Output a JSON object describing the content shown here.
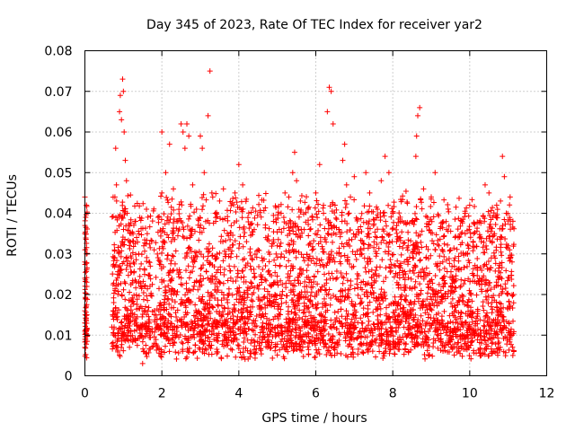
{
  "chart_data": {
    "type": "scatter",
    "title": "Day 345 of 2023, Rate Of TEC Index for receiver yar2",
    "xlabel": "GPS time / hours",
    "ylabel": "ROTI / TECUs",
    "xlim": [
      0,
      12
    ],
    "ylim": [
      0,
      0.08
    ],
    "x_ticks": [
      0,
      2,
      4,
      6,
      8,
      10,
      12
    ],
    "y_ticks": [
      0,
      0.01,
      0.02,
      0.03,
      0.04,
      0.05,
      0.06,
      0.07,
      0.08
    ],
    "x_tick_labels": [
      "0",
      "2",
      "4",
      "6",
      "8",
      "10",
      "12"
    ],
    "y_tick_labels": [
      "0",
      "0.01",
      "0.02",
      "0.03",
      "0.04",
      "0.05",
      "0.06",
      "0.07",
      "0.08"
    ],
    "grid": true,
    "marker": "plus",
    "series": [
      {
        "name": "ROTI",
        "color": "#ff0000",
        "points": [
          [
            0.0,
            0.007
          ],
          [
            0.0,
            0.011
          ],
          [
            0.0,
            0.013
          ],
          [
            0.0,
            0.016
          ],
          [
            0.0,
            0.024
          ],
          [
            0.0,
            0.028
          ],
          [
            0.0,
            0.035
          ],
          [
            0.0,
            0.044
          ],
          [
            0.02,
            0.039
          ],
          [
            0.02,
            0.009
          ],
          [
            0.04,
            0.042
          ],
          [
            0.04,
            0.03
          ],
          [
            0.7,
            0.012
          ],
          [
            0.72,
            0.015
          ],
          [
            0.75,
            0.018
          ],
          [
            0.77,
            0.031
          ],
          [
            0.78,
            0.044
          ],
          [
            0.8,
            0.056
          ],
          [
            0.82,
            0.047
          ],
          [
            0.85,
            0.025
          ],
          [
            0.9,
            0.065
          ],
          [
            0.92,
            0.069
          ],
          [
            0.95,
            0.063
          ],
          [
            0.98,
            0.073
          ],
          [
            1.0,
            0.07
          ],
          [
            1.02,
            0.06
          ],
          [
            1.05,
            0.053
          ],
          [
            1.08,
            0.048
          ],
          [
            1.1,
            0.04
          ],
          [
            1.2,
            0.035
          ],
          [
            1.3,
            0.038
          ],
          [
            1.4,
            0.03
          ],
          [
            1.5,
            0.003
          ],
          [
            1.55,
            0.026
          ],
          [
            1.6,
            0.041
          ],
          [
            1.7,
            0.027
          ],
          [
            1.8,
            0.031
          ],
          [
            1.9,
            0.039
          ],
          [
            2.0,
            0.045
          ],
          [
            2.0,
            0.06
          ],
          [
            2.1,
            0.05
          ],
          [
            2.2,
            0.057
          ],
          [
            2.3,
            0.046
          ],
          [
            2.4,
            0.038
          ],
          [
            2.5,
            0.062
          ],
          [
            2.55,
            0.06
          ],
          [
            2.6,
            0.056
          ],
          [
            2.65,
            0.062
          ],
          [
            2.7,
            0.059
          ],
          [
            2.8,
            0.047
          ],
          [
            2.9,
            0.041
          ],
          [
            3.0,
            0.059
          ],
          [
            3.05,
            0.056
          ],
          [
            3.1,
            0.05
          ],
          [
            3.2,
            0.064
          ],
          [
            3.25,
            0.075
          ],
          [
            3.3,
            0.045
          ],
          [
            3.4,
            0.038
          ],
          [
            3.5,
            0.043
          ],
          [
            3.6,
            0.046
          ],
          [
            3.7,
            0.035
          ],
          [
            3.8,
            0.03
          ],
          [
            3.9,
            0.045
          ],
          [
            4.0,
            0.052
          ],
          [
            4.1,
            0.047
          ],
          [
            4.2,
            0.033
          ],
          [
            4.3,
            0.027
          ],
          [
            4.4,
            0.036
          ],
          [
            4.5,
            0.031
          ],
          [
            4.6,
            0.029
          ],
          [
            4.7,
            0.034
          ],
          [
            4.8,
            0.025
          ],
          [
            4.9,
            0.038
          ],
          [
            5.0,
            0.032
          ],
          [
            5.1,
            0.04
          ],
          [
            5.2,
            0.045
          ],
          [
            5.3,
            0.044
          ],
          [
            5.4,
            0.05
          ],
          [
            5.45,
            0.055
          ],
          [
            5.5,
            0.048
          ],
          [
            5.6,
            0.043
          ],
          [
            5.7,
            0.036
          ],
          [
            5.8,
            0.041
          ],
          [
            5.9,
            0.039
          ],
          [
            6.0,
            0.045
          ],
          [
            6.1,
            0.052
          ],
          [
            6.2,
            0.04
          ],
          [
            6.3,
            0.065
          ],
          [
            6.35,
            0.071
          ],
          [
            6.4,
            0.07
          ],
          [
            6.45,
            0.062
          ],
          [
            6.5,
            0.042
          ],
          [
            6.6,
            0.036
          ],
          [
            6.7,
            0.053
          ],
          [
            6.75,
            0.057
          ],
          [
            6.8,
            0.047
          ],
          [
            6.9,
            0.044
          ],
          [
            7.0,
            0.049
          ],
          [
            7.1,
            0.036
          ],
          [
            7.2,
            0.03
          ],
          [
            7.3,
            0.05
          ],
          [
            7.4,
            0.045
          ],
          [
            7.5,
            0.037
          ],
          [
            7.6,
            0.041
          ],
          [
            7.7,
            0.048
          ],
          [
            7.8,
            0.054
          ],
          [
            7.9,
            0.05
          ],
          [
            8.0,
            0.04
          ],
          [
            8.1,
            0.033
          ],
          [
            8.2,
            0.034
          ],
          [
            8.3,
            0.028
          ],
          [
            8.4,
            0.032
          ],
          [
            8.5,
            0.038
          ],
          [
            8.6,
            0.054
          ],
          [
            8.62,
            0.059
          ],
          [
            8.65,
            0.064
          ],
          [
            8.7,
            0.066
          ],
          [
            8.8,
            0.046
          ],
          [
            8.9,
            0.039
          ],
          [
            9.0,
            0.044
          ],
          [
            9.1,
            0.05
          ],
          [
            9.2,
            0.032
          ],
          [
            9.3,
            0.028
          ],
          [
            9.4,
            0.036
          ],
          [
            9.5,
            0.031
          ],
          [
            9.6,
            0.027
          ],
          [
            9.7,
            0.034
          ],
          [
            9.8,
            0.038
          ],
          [
            9.9,
            0.03
          ],
          [
            10.0,
            0.042
          ],
          [
            10.1,
            0.035
          ],
          [
            10.2,
            0.026
          ],
          [
            10.3,
            0.033
          ],
          [
            10.4,
            0.047
          ],
          [
            10.5,
            0.045
          ],
          [
            10.6,
            0.039
          ],
          [
            10.7,
            0.042
          ],
          [
            10.8,
            0.043
          ],
          [
            10.85,
            0.054
          ],
          [
            10.9,
            0.049
          ],
          [
            10.95,
            0.04
          ],
          [
            11.0,
            0.032
          ],
          [
            11.05,
            0.044
          ],
          [
            11.1,
            0.028
          ],
          [
            11.12,
            0.005
          ],
          [
            11.1,
            0.01
          ]
        ]
      }
    ]
  }
}
